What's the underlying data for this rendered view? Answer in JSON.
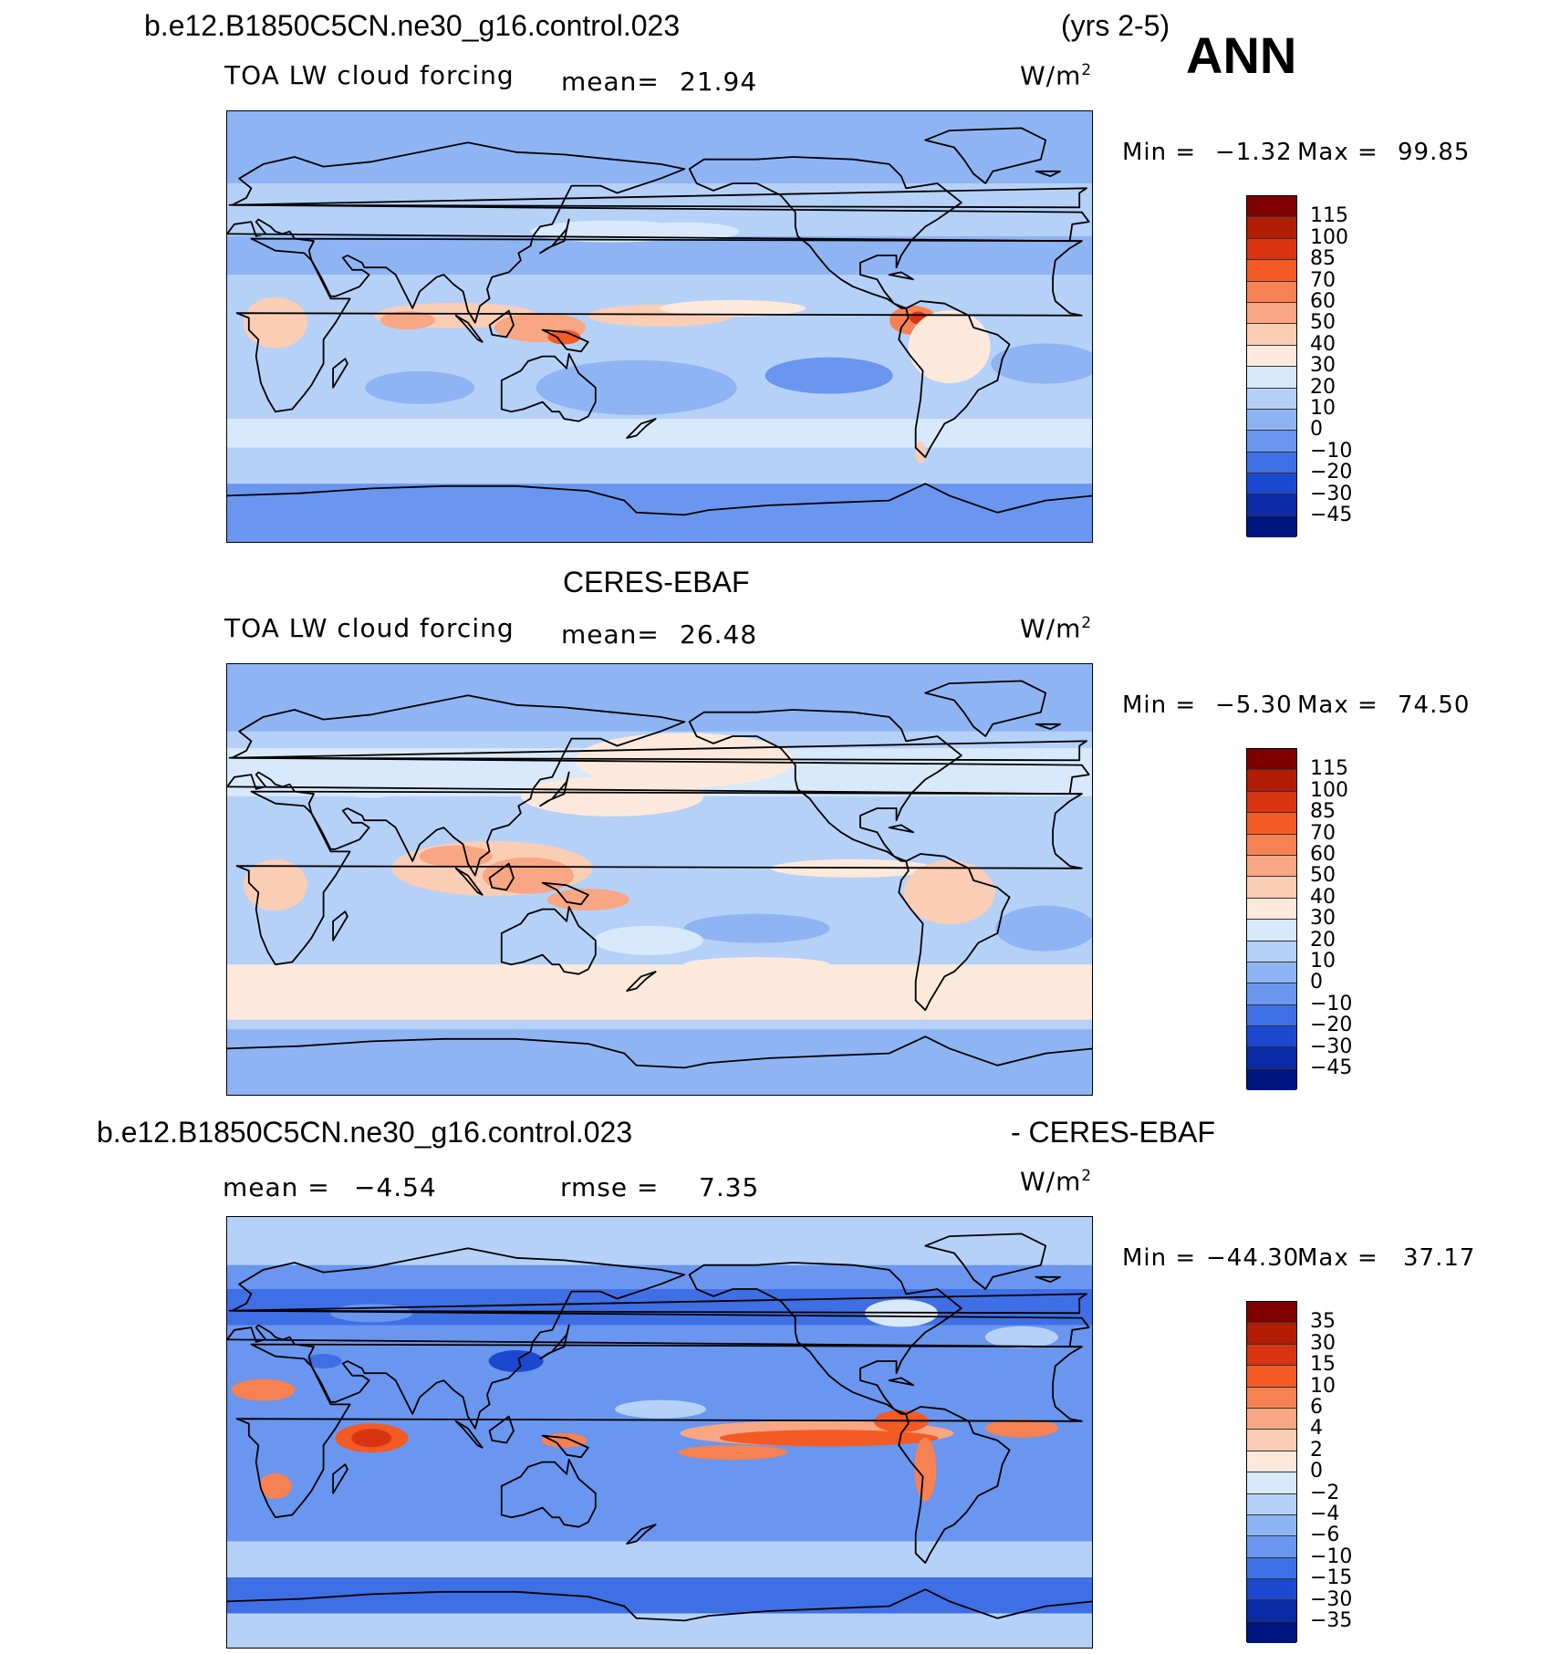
{
  "header": {
    "case_name": "b.e12.B1850C5CN.ne30_g16.control.023",
    "years": "(yrs 2-5)",
    "season": "ANN"
  },
  "units": "W/m",
  "units_exp": "2",
  "panels": [
    {
      "title": "",
      "field": "TOA LW cloud forcing",
      "mean_label": "mean=",
      "mean_value": "21.94",
      "min_label": "Min =",
      "min_value": "−1.32",
      "max_label": "Max =",
      "max_value": "99.85",
      "colorbar_labels": [
        "115",
        "100",
        "85",
        "70",
        "60",
        "50",
        "40",
        "30",
        "20",
        "10",
        "0",
        "−10",
        "−20",
        "−30",
        "−45"
      ],
      "map_style": "model"
    },
    {
      "title": "CERES-EBAF",
      "field": "TOA LW cloud forcing",
      "mean_label": "mean=",
      "mean_value": "26.48",
      "min_label": "Min =",
      "min_value": "−5.30",
      "max_label": "Max =",
      "max_value": "74.50",
      "colorbar_labels": [
        "115",
        "100",
        "85",
        "70",
        "60",
        "50",
        "40",
        "30",
        "20",
        "10",
        "0",
        "−10",
        "−20",
        "−30",
        "−45"
      ],
      "map_style": "obs"
    },
    {
      "title_left": "b.e12.B1850C5CN.ne30_g16.control.023",
      "title_right": "- CERES-EBAF",
      "mean_label": "mean =",
      "mean_value": "−4.54",
      "rmse_label": "rmse =",
      "rmse_value": "7.35",
      "min_label": "Min =",
      "min_value": "−44.30",
      "max_label": "Max =",
      "max_value": "37.17",
      "colorbar_labels": [
        "35",
        "30",
        "15",
        "10",
        "6",
        "4",
        "2",
        "0",
        "−2",
        "−4",
        "−6",
        "−10",
        "−15",
        "−30",
        "−35"
      ],
      "map_style": "diff"
    }
  ],
  "colors": {
    "scale": [
      "#7f0000",
      "#b21d06",
      "#d93412",
      "#f35a24",
      "#f68152",
      "#f8a683",
      "#fbcdb4",
      "#fde9dc",
      "#d8e9fb",
      "#b5d1f8",
      "#8fb4f3",
      "#6a96ef",
      "#3f6fe4",
      "#1c48d0",
      "#0a2aa8",
      "#001580"
    ],
    "coast": "#000000"
  }
}
